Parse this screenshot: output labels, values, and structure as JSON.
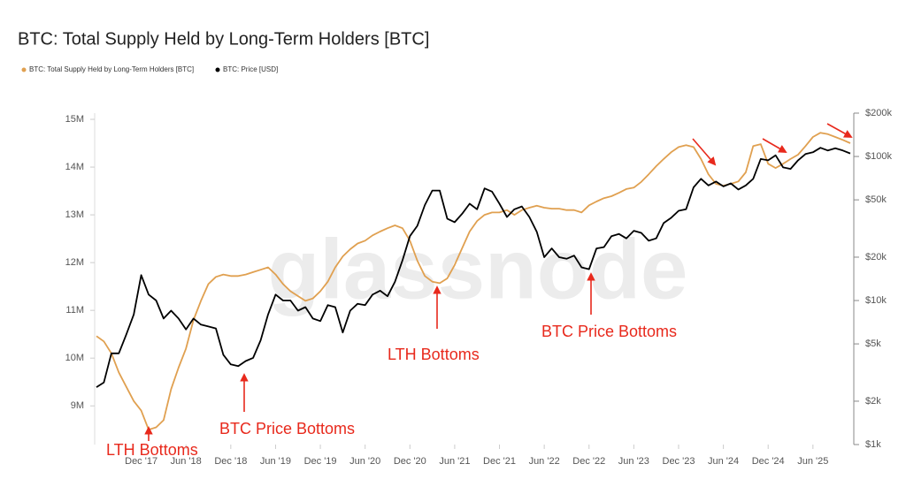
{
  "chart_data": {
    "type": "line",
    "title": "BTC: Total Supply Held by Long-Term Holders [BTC]",
    "watermark": "glassnode",
    "x": [
      "2017-06",
      "2017-07",
      "2017-08",
      "2017-09",
      "2017-10",
      "2017-11",
      "2017-12",
      "2018-01",
      "2018-02",
      "2018-03",
      "2018-04",
      "2018-05",
      "2018-06",
      "2018-07",
      "2018-08",
      "2018-09",
      "2018-10",
      "2018-11",
      "2018-12",
      "2019-01",
      "2019-02",
      "2019-03",
      "2019-04",
      "2019-05",
      "2019-06",
      "2019-07",
      "2019-08",
      "2019-09",
      "2019-10",
      "2019-11",
      "2019-12",
      "2020-01",
      "2020-02",
      "2020-03",
      "2020-04",
      "2020-05",
      "2020-06",
      "2020-07",
      "2020-08",
      "2020-09",
      "2020-10",
      "2020-11",
      "2020-12",
      "2021-01",
      "2021-02",
      "2021-03",
      "2021-04",
      "2021-05",
      "2021-06",
      "2021-07",
      "2021-08",
      "2021-09",
      "2021-10",
      "2021-11",
      "2021-12",
      "2022-01",
      "2022-02",
      "2022-03",
      "2022-04",
      "2022-05",
      "2022-06",
      "2022-07",
      "2022-08",
      "2022-09",
      "2022-10",
      "2022-11",
      "2022-12",
      "2023-01",
      "2023-02",
      "2023-03",
      "2023-04",
      "2023-05",
      "2023-06",
      "2023-07",
      "2023-08",
      "2023-09",
      "2023-10",
      "2023-11",
      "2023-12",
      "2024-01",
      "2024-02",
      "2024-03",
      "2024-04",
      "2024-05",
      "2024-06",
      "2024-07",
      "2024-08",
      "2024-09",
      "2024-10",
      "2024-11",
      "2024-12",
      "2025-01",
      "2025-02",
      "2025-03",
      "2025-04",
      "2025-05",
      "2025-06",
      "2025-07",
      "2025-08",
      "2025-09",
      "2025-10",
      "2025-11"
    ],
    "xlim": [
      "2017-06",
      "2025-11"
    ],
    "xticks": [
      {
        "value": "2017-12",
        "label": "Dec '17"
      },
      {
        "value": "2018-06",
        "label": "Jun '18"
      },
      {
        "value": "2018-12",
        "label": "Dec '18"
      },
      {
        "value": "2019-06",
        "label": "Jun '19"
      },
      {
        "value": "2019-12",
        "label": "Dec '19"
      },
      {
        "value": "2020-06",
        "label": "Jun '20"
      },
      {
        "value": "2020-12",
        "label": "Dec '20"
      },
      {
        "value": "2021-06",
        "label": "Jun '21"
      },
      {
        "value": "2021-12",
        "label": "Dec '21"
      },
      {
        "value": "2022-06",
        "label": "Jun '22"
      },
      {
        "value": "2022-12",
        "label": "Dec '22"
      },
      {
        "value": "2023-06",
        "label": "Jun '23"
      },
      {
        "value": "2023-12",
        "label": "Dec '23"
      },
      {
        "value": "2024-06",
        "label": "Jun '24"
      },
      {
        "value": "2024-12",
        "label": "Dec '24"
      },
      {
        "value": "2025-06",
        "label": "Jun '25"
      }
    ],
    "ylim": [
      8.19,
      15.13
    ],
    "yticks": [
      {
        "value": 9,
        "label": "9M"
      },
      {
        "value": 10,
        "label": "10M"
      },
      {
        "value": 11,
        "label": "11M"
      },
      {
        "value": 12,
        "label": "12M"
      },
      {
        "value": 13,
        "label": "13M"
      },
      {
        "value": 14,
        "label": "14M"
      },
      {
        "value": 15,
        "label": "15M"
      }
    ],
    "y2lim": [
      1000,
      200000
    ],
    "y2scale": "log",
    "y2ticks": [
      {
        "value": 1000,
        "label": "$1k"
      },
      {
        "value": 2000,
        "label": "$2k"
      },
      {
        "value": 5000,
        "label": "$5k"
      },
      {
        "value": 10000,
        "label": "$10k"
      },
      {
        "value": 20000,
        "label": "$20k"
      },
      {
        "value": 50000,
        "label": "$50k"
      },
      {
        "value": 100000,
        "label": "$100k"
      },
      {
        "value": 200000,
        "label": "$200k"
      }
    ],
    "grid": false,
    "series": [
      {
        "name": "BTC: Total Supply Held by Long-Term Holders [BTC]",
        "color": "#e0a050",
        "axis": "y",
        "values": [
          10.46,
          10.35,
          10.1,
          9.7,
          9.4,
          9.1,
          8.9,
          8.5,
          8.55,
          8.7,
          9.35,
          9.8,
          10.2,
          10.8,
          11.2,
          11.55,
          11.7,
          11.75,
          11.72,
          11.72,
          11.75,
          11.8,
          11.85,
          11.9,
          11.75,
          11.55,
          11.4,
          11.3,
          11.2,
          11.25,
          11.4,
          11.6,
          11.9,
          12.13,
          12.28,
          12.4,
          12.46,
          12.57,
          12.65,
          12.72,
          12.78,
          12.72,
          12.46,
          12.04,
          11.72,
          11.6,
          11.57,
          11.67,
          11.95,
          12.3,
          12.65,
          12.87,
          13.0,
          13.05,
          13.05,
          13.1,
          13.0,
          13.1,
          13.15,
          13.19,
          13.15,
          13.13,
          13.13,
          13.1,
          13.1,
          13.05,
          13.2,
          13.28,
          13.35,
          13.39,
          13.46,
          13.54,
          13.57,
          13.69,
          13.85,
          14.02,
          14.17,
          14.31,
          14.42,
          14.46,
          14.42,
          14.17,
          13.85,
          13.65,
          13.61,
          13.65,
          13.7,
          13.89,
          14.44,
          14.48,
          14.07,
          13.98,
          14.07,
          14.17,
          14.26,
          14.44,
          14.63,
          14.72,
          14.69,
          14.63,
          14.57,
          14.5
        ]
      },
      {
        "name": "BTC: Price [USD]",
        "color": "#000000",
        "axis": "y2",
        "values": [
          2500,
          2700,
          4300,
          4300,
          5800,
          8000,
          15000,
          11000,
          10000,
          7500,
          8500,
          7500,
          6300,
          7500,
          6800,
          6600,
          6400,
          4200,
          3600,
          3500,
          3800,
          4000,
          5300,
          8000,
          11000,
          10000,
          10000,
          8500,
          9000,
          7500,
          7200,
          9300,
          9000,
          6000,
          8500,
          9500,
          9300,
          11000,
          11700,
          10700,
          13500,
          19000,
          28000,
          33000,
          46000,
          58000,
          58000,
          37000,
          35000,
          40000,
          47000,
          43000,
          60000,
          57000,
          47000,
          38000,
          43000,
          45000,
          38000,
          30000,
          20000,
          23000,
          20000,
          19500,
          20500,
          17000,
          16500,
          23000,
          23500,
          28000,
          29000,
          27000,
          30500,
          29500,
          26000,
          27000,
          34500,
          37500,
          42000,
          43000,
          61000,
          70000,
          63000,
          67000,
          62000,
          65000,
          59000,
          63000,
          70000,
          96000,
          94000,
          102000,
          84000,
          82000,
          94000,
          104000,
          107000,
          115000,
          110000,
          114000,
          110000,
          105000
        ]
      }
    ],
    "annotations": [
      {
        "text": "LTH Bottoms"
      },
      {
        "text": "BTC Price Bottoms"
      },
      {
        "text": "LTH Bottoms"
      },
      {
        "text": "BTC Price Bottoms"
      }
    ]
  }
}
